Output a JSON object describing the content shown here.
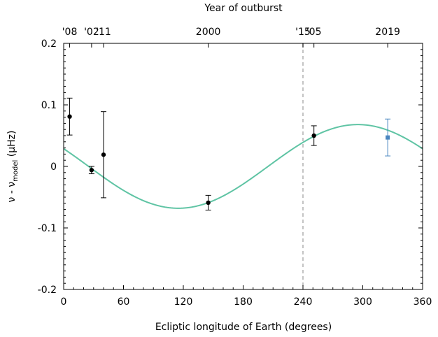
{
  "chart_data": {
    "type": "scatter",
    "top_axis_label": "Year of outburst",
    "top_ticks": [
      {
        "label": "'08",
        "x": 6
      },
      {
        "label": "'02",
        "x": 28
      },
      {
        "label": "'11",
        "x": 40
      },
      {
        "label": "2000",
        "x": 145
      },
      {
        "label": "'15",
        "x": 240
      },
      {
        "label": "'05",
        "x": 251
      },
      {
        "label": "2019",
        "x": 325
      }
    ],
    "xlabel": "Ecliptic longitude of Earth (degrees)",
    "ylabel_main": "ν - ν",
    "ylabel_sub": "model",
    "ylabel_unit": " (μHz)",
    "xlim": [
      0,
      360
    ],
    "ylim": [
      -0.2,
      0.2
    ],
    "x_ticks": [
      0,
      60,
      120,
      180,
      240,
      300,
      360
    ],
    "y_ticks": [
      {
        "value": 0.2,
        "label": "0.2"
      },
      {
        "value": 0.1,
        "label": "0.1"
      },
      {
        "value": 0.0,
        "label": "0"
      },
      {
        "value": -0.1,
        "label": "-0.1"
      },
      {
        "value": -0.2,
        "label": "-0.2"
      }
    ],
    "grid": false,
    "vertical_line_x": 240,
    "fit_curve": {
      "amplitude": 0.068,
      "phase_deg": 25,
      "color": "#5fc4a4"
    },
    "points": [
      {
        "x": 6,
        "y": 0.081,
        "err": 0.03,
        "color": "#000000",
        "marker": "circle"
      },
      {
        "x": 28,
        "y": -0.006,
        "err": 0.006,
        "color": "#000000",
        "marker": "circle"
      },
      {
        "x": 40,
        "y": 0.019,
        "err": 0.07,
        "color": "#000000",
        "marker": "circle"
      },
      {
        "x": 145,
        "y": -0.059,
        "err": 0.012,
        "color": "#000000",
        "marker": "circle"
      },
      {
        "x": 251,
        "y": 0.05,
        "err": 0.016,
        "color": "#000000",
        "marker": "circle"
      },
      {
        "x": 325,
        "y": 0.047,
        "err": 0.03,
        "color": "#4a86c0",
        "marker": "square"
      }
    ],
    "colors": {
      "axis": "#000000",
      "vline": "#b0b0b0",
      "curve": "#5fc4a4",
      "highlight": "#4a86c0"
    }
  }
}
